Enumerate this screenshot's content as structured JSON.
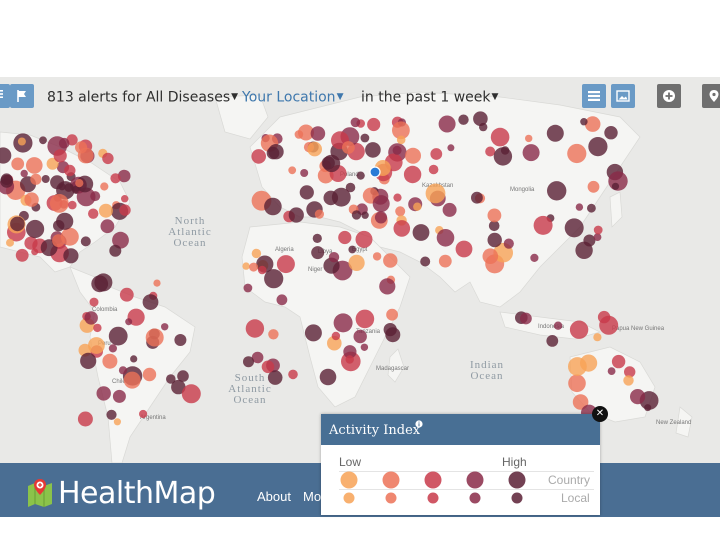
{
  "toolbar": {
    "alerts_label": "813 alerts for All Diseases",
    "location_label": "Your Location",
    "time_label": "in the past 1 week"
  },
  "map": {
    "ocean_labels": [
      "North Atlantic Ocean",
      "South Atlantic Ocean",
      "Indian Ocean"
    ],
    "country_labels": [
      "Poland",
      "Kazakhstan",
      "Mongolia",
      "Algeria",
      "Libya",
      "Egypt",
      "Niger",
      "Tanzania",
      "Madagascar",
      "Indonesia",
      "Papua New Guinea",
      "Peru",
      "Chile",
      "Colombia",
      "Argentina",
      "New Zealand"
    ]
  },
  "legend": {
    "title": "Activity Index",
    "low_label": "Low",
    "high_label": "High",
    "row_country": "Country",
    "row_local": "Local",
    "colors": [
      "#f7a256",
      "#ec7257",
      "#c83a4a",
      "#8a2a48",
      "#5a2035"
    ]
  },
  "footer": {
    "brand": "HealthMap",
    "links": [
      "About",
      "Mo"
    ]
  },
  "colors": {
    "footer_bg": "#4a6e93",
    "accent_blue": "#6a9ac6",
    "map_bg": "#e9e9e7",
    "land": "#f5f5f3"
  },
  "icons": [
    "list-view-icon",
    "flag-icon",
    "table-icon",
    "image-icon",
    "plus-icon",
    "location-icon",
    "info-icon",
    "close-icon",
    "healthmap-logo-icon"
  ]
}
